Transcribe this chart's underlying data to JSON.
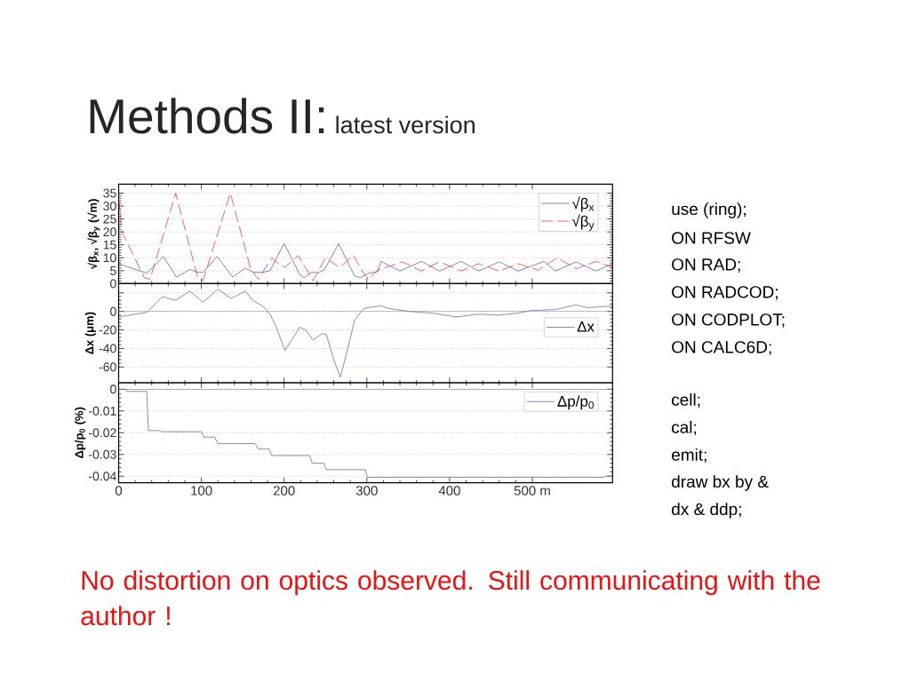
{
  "chart_data": [
    {
      "type": "line",
      "title": "Methods II:",
      "subtitle": "latest version",
      "ylabel": "√β$_{x}$, √β$_{y}$ (√m)",
      "xlim": [
        0,
        597
      ],
      "ylim": [
        0,
        38.5
      ],
      "xticks": [
        0,
        100,
        200,
        300,
        400,
        500
      ],
      "yticks": [
        0,
        5,
        10,
        15,
        20,
        25,
        30,
        35
      ],
      "tick_labels": "y",
      "grid": "y",
      "legend": "top right",
      "series": [
        {
          "name": "√β$_{x}$",
          "color": "#5b5ba8",
          "line_style": "solid",
          "x": [
            0,
            34,
            54,
            70,
            86,
            94,
            102,
            119,
            138,
            153,
            162,
            174,
            183,
            200,
            219,
            224,
            233,
            242,
            249,
            266,
            285,
            292,
            302,
            313,
            317,
            340,
            366,
            388,
            414,
            435,
            460,
            483,
            514,
            528,
            553,
            577,
            597
          ],
          "values": [
            7.7,
            4.0,
            10.5,
            2.5,
            5.5,
            4.5,
            4.3,
            10.5,
            2.5,
            6.0,
            4.5,
            4.3,
            5.0,
            15.5,
            3.5,
            2.3,
            4.3,
            4.3,
            5.5,
            15.5,
            3.0,
            2.3,
            4.0,
            4.6,
            8.6,
            4.9,
            8.6,
            4.9,
            8.6,
            4.9,
            8.4,
            4.9,
            8.6,
            4.9,
            8.4,
            4.9,
            7.7
          ]
        },
        {
          "name": "√β$_{y}$",
          "color": "#e0303a",
          "line_style": "dashed",
          "x": [
            0,
            4,
            31,
            38,
            69,
            95,
            102,
            135,
            160,
            169,
            185,
            192,
            201,
            217,
            223,
            235,
            250,
            267,
            284,
            295,
            302,
            313,
            343,
            366,
            388,
            414,
            435,
            460,
            483,
            507,
            530,
            553,
            577,
            597
          ],
          "values": [
            33,
            20,
            2.3,
            1.7,
            35,
            2.9,
            1.1,
            35,
            5.2,
            1.7,
            10,
            8,
            6.3,
            10.9,
            7.7,
            1.1,
            10,
            6.3,
            10.9,
            4.6,
            1.7,
            5.2,
            8.4,
            4.9,
            8.4,
            4.9,
            7.7,
            4.9,
            7.7,
            5.2,
            10,
            5.7,
            8.6,
            6.3
          ]
        }
      ]
    },
    {
      "type": "line",
      "ylabel": "Δx (μm)",
      "xlim": [
        0,
        597
      ],
      "ylim": [
        -77,
        30
      ],
      "xticks": [
        0,
        100,
        200,
        300,
        400,
        500
      ],
      "yticks": [
        -60,
        -40,
        -20,
        0,
        {
          "value": 20,
          "label": null
        }
      ],
      "tick_labels": "y",
      "grid": "y",
      "legend": "right",
      "ref_lines": [
        {
          "axis": "y",
          "value": 0,
          "color": "#7f7f7f"
        }
      ],
      "series": [
        {
          "name": "Δx",
          "color": "#6464a8",
          "x": [
            0,
            34,
            53,
            69,
            86,
            102,
            120,
            136,
            153,
            162,
            174,
            183,
            190,
            201,
            219,
            226,
            235,
            246,
            251,
            260,
            268,
            280,
            285,
            295,
            300,
            317,
            327,
            352,
            381,
            408,
            435,
            460,
            481,
            499,
            528,
            553,
            567,
            597
          ],
          "values": [
            -6,
            -1,
            16,
            12,
            22,
            10,
            24,
            14,
            22,
            12,
            6,
            -3,
            -16,
            -42,
            -17,
            -20,
            -31,
            -24,
            -25,
            -52,
            -71,
            -29,
            -10,
            2,
            4,
            6,
            3,
            0,
            -2,
            -6,
            -3,
            -4,
            -2,
            1,
            2,
            7,
            4,
            6
          ]
        }
      ]
    },
    {
      "type": "line",
      "ylabel": "Δp/p$_{0}$ (%)",
      "xlim": [
        0,
        597
      ],
      "ylim": [
        -0.043,
        0.003
      ],
      "xticks": [
        0,
        100,
        200,
        300,
        400,
        {
          "value": 500,
          "label": "500 m"
        }
      ],
      "yticks": [
        -0.04,
        -0.03,
        -0.02,
        -0.01,
        0
      ],
      "grid": "y",
      "legend": "top right",
      "ref_lines": [
        {
          "axis": "y",
          "value": 0,
          "color": "#7f7f7f"
        }
      ],
      "annotations": [
        "No distortion on optics observed. Still communicating with the author !"
      ],
      "series": [
        {
          "name": "Δp/p$_{0}$",
          "color": "#6464a8",
          "x": [
            0,
            9,
            10,
            34,
            36,
            50,
            52,
            100,
            103,
            116,
            120,
            165,
            169,
            182,
            185,
            231,
            234,
            248,
            251,
            298,
            301,
            586,
            589,
            597
          ],
          "values": [
            0,
            0,
            -0.001,
            -0.001,
            -0.019,
            -0.019,
            -0.0195,
            -0.0195,
            -0.022,
            -0.022,
            -0.025,
            -0.025,
            -0.0275,
            -0.0275,
            -0.0305,
            -0.0305,
            -0.034,
            -0.034,
            -0.037,
            -0.037,
            -0.0405,
            -0.0405,
            -0.04,
            -0.04
          ]
        }
      ]
    },
    {
      "type": "other",
      "annotations": [
        "use (ring);",
        "ON RFSW",
        "ON RAD;",
        "ON RADCOD;",
        "ON CODPLOT;",
        "ON CALC6D;",
        "cell;",
        "cal;",
        "emit;",
        "draw bx by &",
        "dx & ddp;"
      ]
    }
  ]
}
